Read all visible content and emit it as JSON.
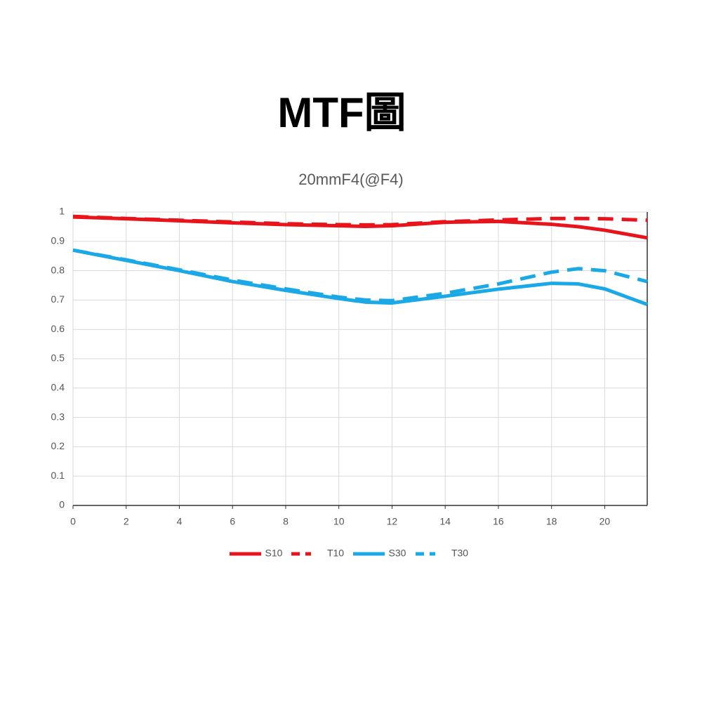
{
  "chart_data": {
    "type": "line",
    "title": "MTF圖",
    "subtitle": "20mmF4(@F4)",
    "x": [
      0,
      2,
      4,
      6,
      8,
      10,
      11,
      12,
      14,
      16,
      18,
      19,
      20,
      21.6
    ],
    "series": [
      {
        "name": "S10",
        "color": "#e8141b",
        "dashed": false,
        "values": [
          0.983,
          0.977,
          0.97,
          0.963,
          0.957,
          0.953,
          0.951,
          0.953,
          0.965,
          0.968,
          0.958,
          0.95,
          0.938,
          0.912
        ]
      },
      {
        "name": "T10",
        "color": "#e8141b",
        "dashed": true,
        "values": [
          0.985,
          0.978,
          0.972,
          0.966,
          0.96,
          0.957,
          0.956,
          0.957,
          0.967,
          0.973,
          0.978,
          0.978,
          0.977,
          0.972
        ]
      },
      {
        "name": "S30",
        "color": "#1aa9e6",
        "dashed": false,
        "values": [
          0.87,
          0.835,
          0.8,
          0.763,
          0.733,
          0.705,
          0.693,
          0.69,
          0.713,
          0.737,
          0.757,
          0.755,
          0.738,
          0.685
        ]
      },
      {
        "name": "T30",
        "color": "#1aa9e6",
        "dashed": true,
        "values": [
          0.87,
          0.837,
          0.803,
          0.768,
          0.738,
          0.71,
          0.7,
          0.698,
          0.723,
          0.755,
          0.795,
          0.807,
          0.8,
          0.763
        ]
      }
    ],
    "xlim": [
      0,
      21.6
    ],
    "xticks": [
      0,
      2,
      4,
      6,
      8,
      10,
      12,
      14,
      16,
      18,
      20
    ],
    "ylim": [
      0,
      1
    ],
    "yticks": [
      0,
      0.1,
      0.2,
      0.3,
      0.4,
      0.5,
      0.6,
      0.7,
      0.8,
      0.9,
      1
    ],
    "grid": true,
    "legend": "bottom"
  }
}
